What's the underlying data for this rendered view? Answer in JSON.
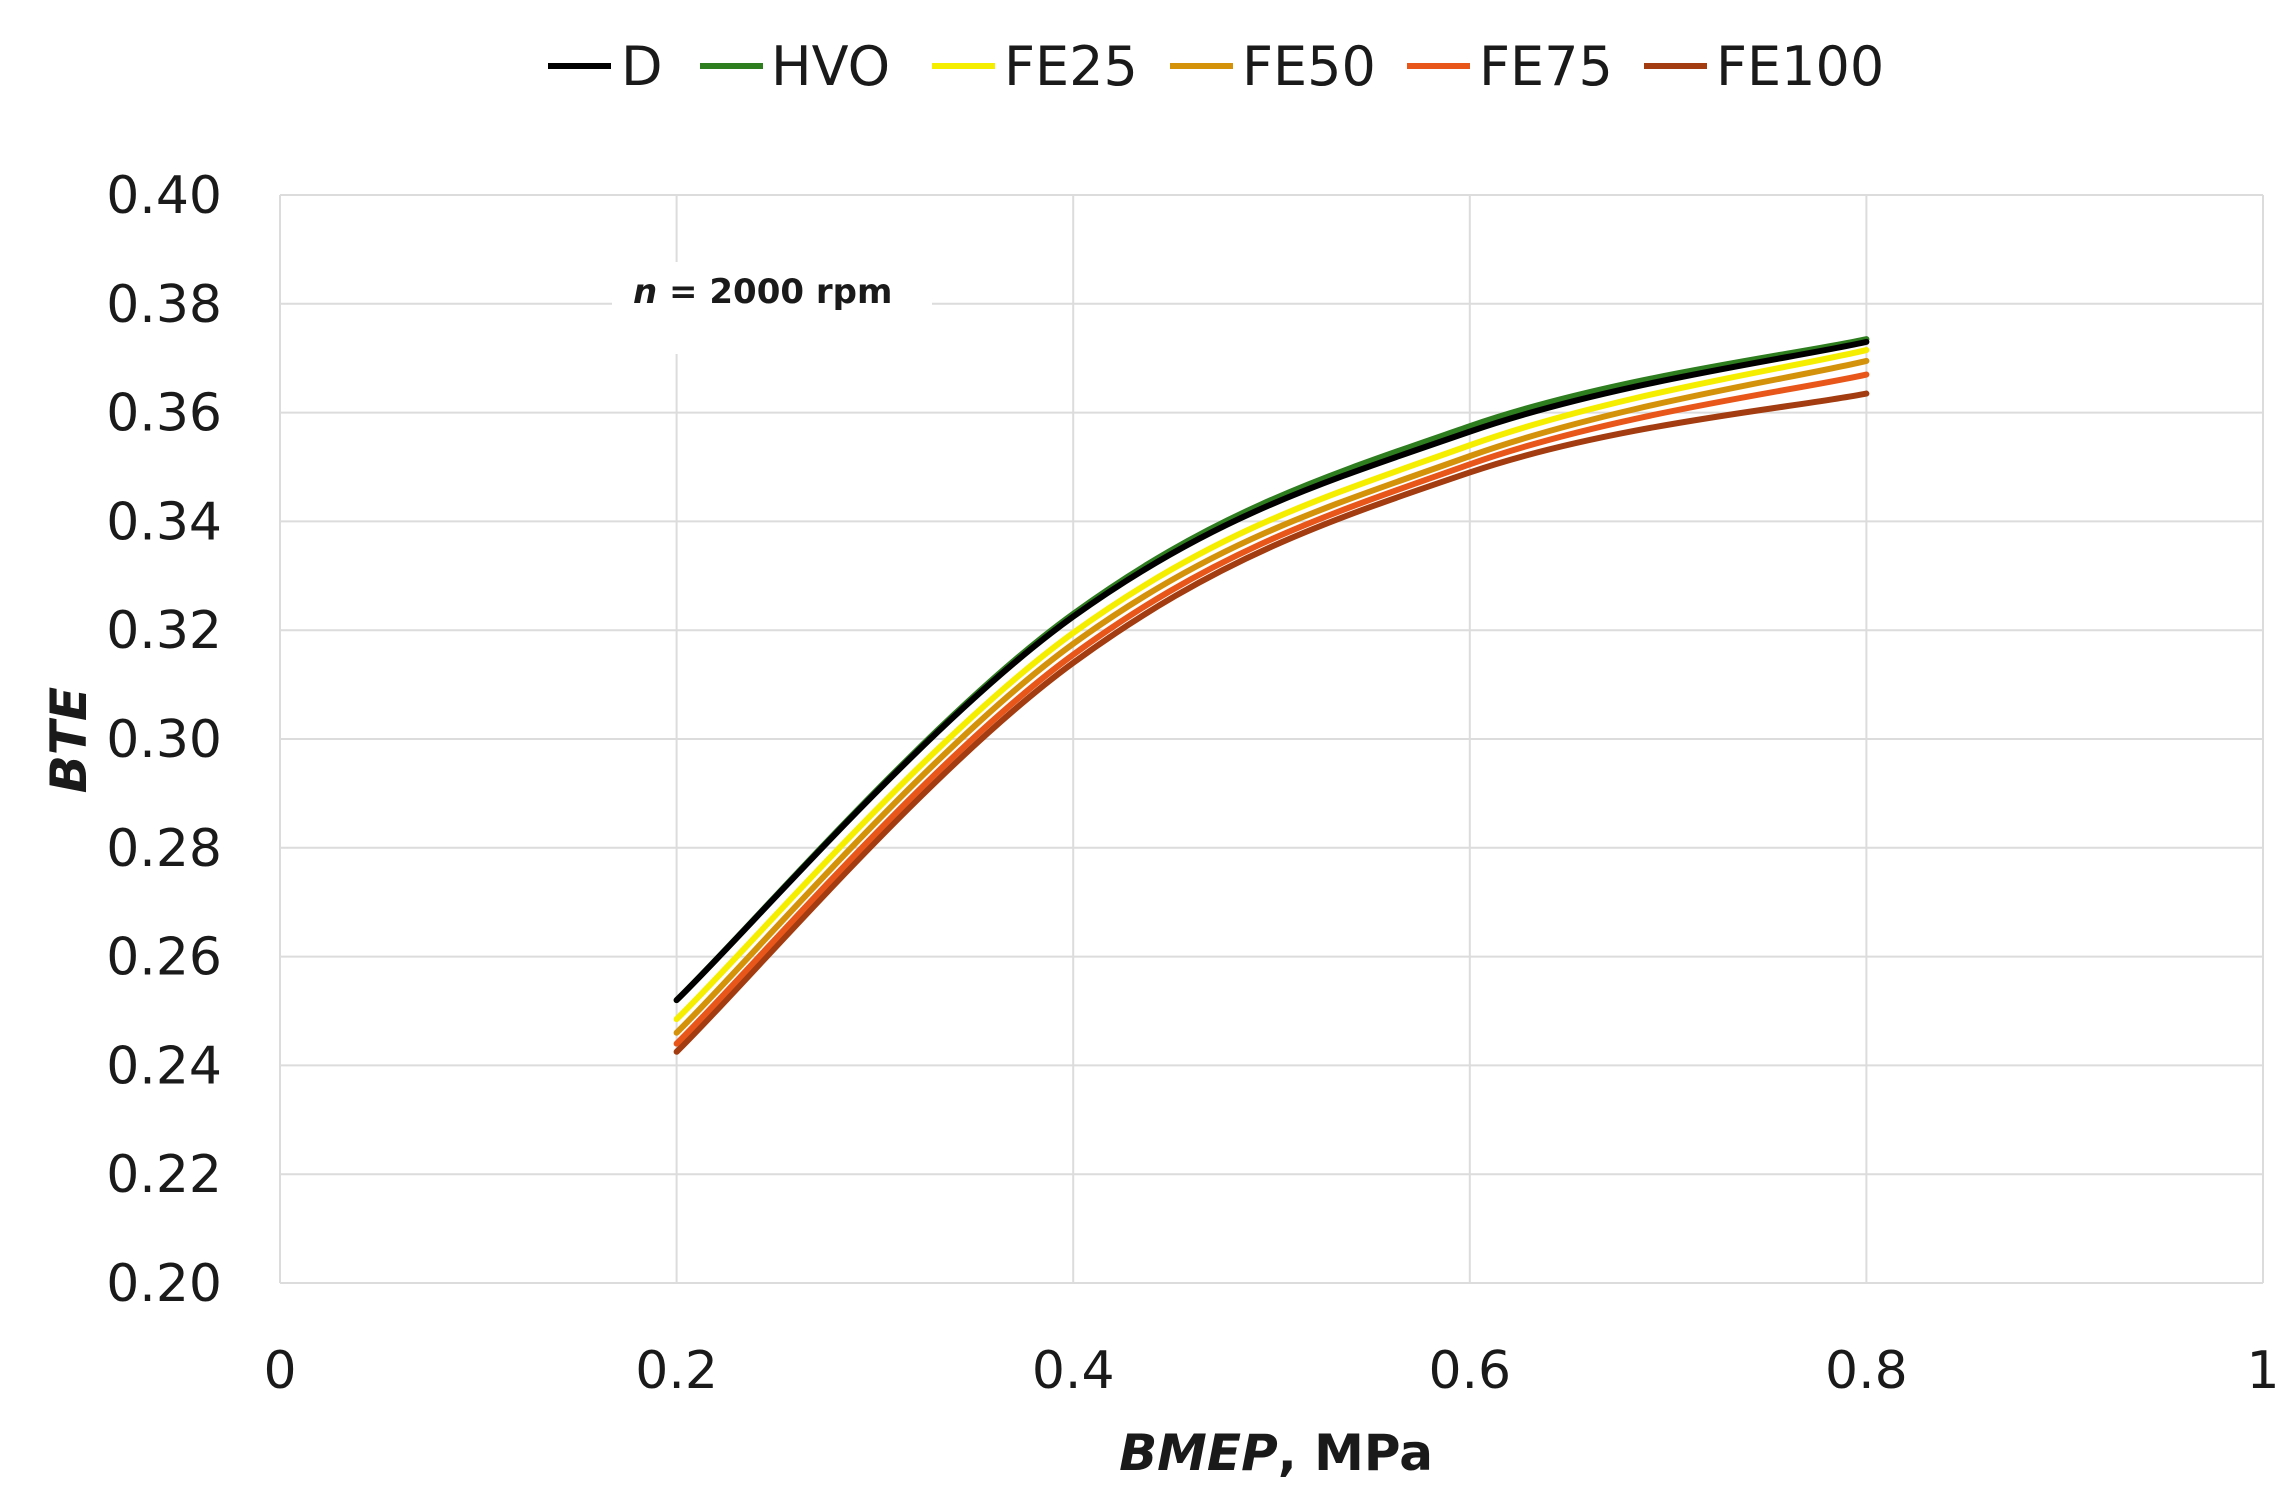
{
  "chart_data": {
    "type": "line",
    "title": "",
    "xlabel_italic": "BMEP",
    "xlabel_rest": ", MPa",
    "ylabel": "BTE",
    "xlim": [
      0,
      1
    ],
    "ylim": [
      0.2,
      0.4
    ],
    "x_ticks": [
      0,
      0.2,
      0.4,
      0.6,
      0.8,
      1
    ],
    "x_tick_labels": [
      "0",
      "0.2",
      "0.4",
      "0.6",
      "0.8",
      "1"
    ],
    "y_ticks": [
      0.2,
      0.22,
      0.24,
      0.26,
      0.28,
      0.3,
      0.32,
      0.34,
      0.36,
      0.38,
      0.4
    ],
    "y_tick_labels": [
      "0.20",
      "0.22",
      "0.24",
      "0.26",
      "0.28",
      "0.30",
      "0.32",
      "0.34",
      "0.36",
      "0.38",
      "0.40"
    ],
    "grid": true,
    "legend_position": "top-center",
    "annotation": {
      "italic": "n",
      "rest": " = 2000 rpm"
    },
    "x": [
      0.2,
      0.4,
      0.6,
      0.8
    ],
    "series": [
      {
        "name": "D",
        "color": "#000000",
        "values": [
          0.252,
          0.3225,
          0.3565,
          0.373
        ]
      },
      {
        "name": "HVO",
        "color": "#2e7d1f",
        "values": [
          0.252,
          0.323,
          0.3575,
          0.3735
        ]
      },
      {
        "name": "FE25",
        "color": "#f5ee00",
        "values": [
          0.2485,
          0.3195,
          0.354,
          0.3715
        ]
      },
      {
        "name": "FE50",
        "color": "#d4920a",
        "values": [
          0.246,
          0.3175,
          0.352,
          0.3695
        ]
      },
      {
        "name": "FE75",
        "color": "#e8561a",
        "values": [
          0.244,
          0.3155,
          0.3505,
          0.367
        ]
      },
      {
        "name": "FE100",
        "color": "#a33c10",
        "values": [
          0.2425,
          0.314,
          0.349,
          0.3635
        ]
      }
    ]
  }
}
